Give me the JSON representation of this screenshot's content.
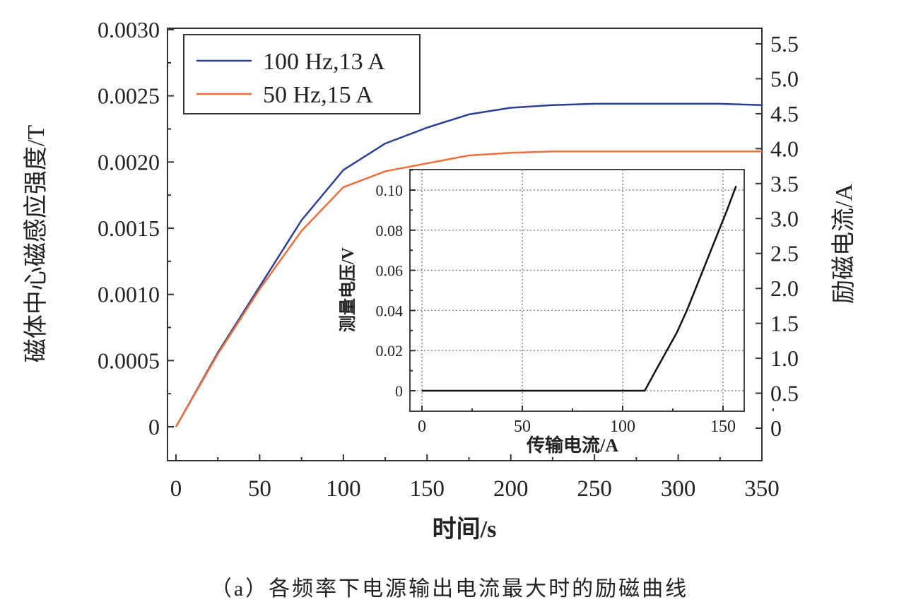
{
  "chart_data": [
    {
      "type": "line",
      "xlabel": "时间/s",
      "ylabel": "磁体中心磁感应强度/T",
      "ylabel_right": "励磁电流/A",
      "xlim": [
        -5,
        350
      ],
      "ylim": [
        -0.00025,
        0.003
      ],
      "ylim_right": [
        -0.25,
        5.9
      ],
      "xticks": [
        "0",
        "50",
        "100",
        "150",
        "200",
        "250",
        "300",
        "350"
      ],
      "yticks": [
        "0",
        "0.0005",
        "0.0010",
        "0.0015",
        "0.0020",
        "0.0025",
        "0.0030"
      ],
      "yticks_right": [
        "0",
        "0.5",
        "1.0",
        "1.5",
        "2.0",
        "2.5",
        "3.0",
        "3.5",
        "4.0",
        "4.5",
        "5.0",
        "5.5"
      ],
      "grid": false,
      "legend": "top-left",
      "series": [
        {
          "name": "100 Hz,13 A",
          "color": "#2b3f94",
          "x": [
            0,
            25,
            50,
            75,
            100,
            125,
            150,
            175,
            200,
            225,
            250,
            275,
            300,
            325,
            350
          ],
          "y": [
            0,
            0.00056,
            0.00106,
            0.00156,
            0.00194,
            0.00214,
            0.00226,
            0.00236,
            0.00241,
            0.00243,
            0.00244,
            0.00244,
            0.00244,
            0.00244,
            0.00243
          ]
        },
        {
          "name": "50 Hz,15 A",
          "color": "#ef6f3c",
          "x": [
            0,
            25,
            50,
            75,
            100,
            125,
            150,
            175,
            200,
            225,
            250,
            275,
            300,
            325,
            350
          ],
          "y": [
            0,
            0.00055,
            0.00104,
            0.00148,
            0.00181,
            0.00193,
            0.00199,
            0.00205,
            0.00207,
            0.00208,
            0.00208,
            0.00208,
            0.00208,
            0.00208,
            0.00208
          ]
        }
      ]
    },
    {
      "type": "line",
      "xlabel": "传输电流/A",
      "ylabel": "测量电压/V",
      "xlim": [
        -6,
        160
      ],
      "ylim": [
        -0.006,
        0.11
      ],
      "xticks": [
        "0",
        "50",
        "100",
        "150"
      ],
      "yticks": [
        "0",
        "0.02",
        "0.04",
        "0.06",
        "0.08",
        "0.10"
      ],
      "grid": true,
      "series": [
        {
          "color": "#111111",
          "x": [
            0,
            50,
            100,
            111,
            117,
            122,
            127,
            132,
            136,
            140,
            144,
            148,
            152,
            156.5
          ],
          "y": [
            0,
            0,
            0,
            0,
            0.011,
            0.02,
            0.029,
            0.04,
            0.05,
            0.06,
            0.07,
            0.08,
            0.09,
            0.102
          ]
        }
      ]
    }
  ],
  "caption": "（a）各频率下电源输出电流最大时的励磁曲线"
}
